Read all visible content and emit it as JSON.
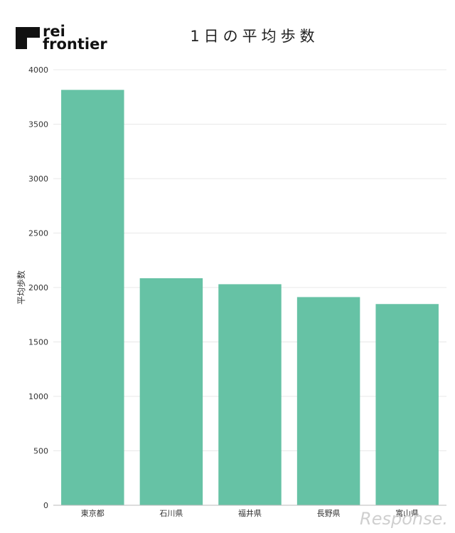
{
  "brand": {
    "line1": "rei",
    "line2": "frontier"
  },
  "watermark": "Response.",
  "chart_data": {
    "type": "bar",
    "title": "1日の平均歩数",
    "xlabel": "",
    "ylabel": "平均歩数",
    "categories": [
      "東京都",
      "石川県",
      "福井県",
      "長野県",
      "富山県"
    ],
    "values": [
      3815,
      2085,
      2030,
      1912,
      1848
    ],
    "ylim": [
      0,
      4000
    ],
    "yticks": [
      0,
      500,
      1000,
      1500,
      2000,
      2500,
      3000,
      3500,
      4000
    ],
    "grid": true,
    "legend": "none",
    "colors": {
      "bar": "#66c2a5",
      "grid": "#e8e8e8",
      "axis": "#bbbbbb"
    }
  }
}
